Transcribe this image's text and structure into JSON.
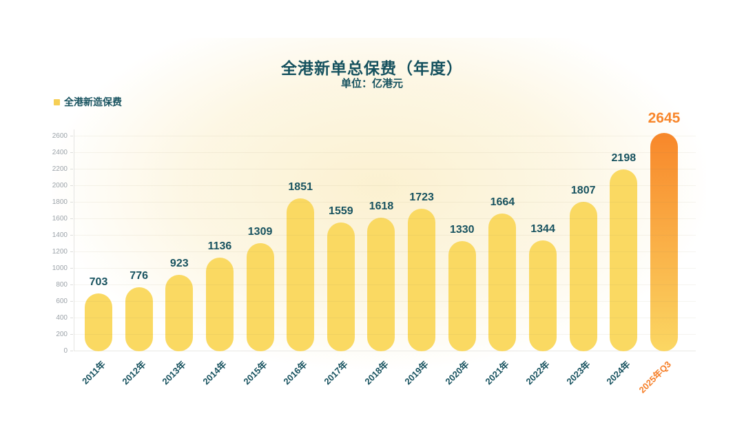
{
  "header": {
    "title": "全港新单总保费（年度）",
    "subtitle": "单位：亿港元"
  },
  "legend": {
    "label": "全港新造保费",
    "swatch_color": "#F6CF55"
  },
  "chart_data": {
    "type": "bar",
    "title": "全港新单总保费（年度）",
    "unit_label": "单位：亿港元",
    "legend_entries": [
      "全港新造保费"
    ],
    "legend_position": "top-left",
    "categories": [
      "2011年",
      "2012年",
      "2013年",
      "2014年",
      "2015年",
      "2016年",
      "2017年",
      "2018年",
      "2019年",
      "2020年",
      "2021年",
      "2022年",
      "2023年",
      "2024年",
      "2025年Q3"
    ],
    "values": [
      703,
      776,
      923,
      1136,
      1309,
      1851,
      1559,
      1618,
      1723,
      1330,
      1664,
      1344,
      1807,
      2198,
      2645
    ],
    "highlight_index": 14,
    "xlabel": "",
    "ylabel": "",
    "ylim": [
      0,
      2600
    ],
    "y_ticks": [
      0,
      200,
      400,
      600,
      800,
      1000,
      1200,
      1400,
      1600,
      1800,
      2000,
      2200,
      2400,
      2600
    ],
    "grid": true,
    "colors": {
      "bar": "#FAD962",
      "highlight_bar_top": "#F8872A",
      "highlight_bar_bottom": "#FBD763",
      "value_label": "#17525F",
      "highlight_value_label": "#F8862B",
      "category_label": "#17525F",
      "highlight_category_label": "#F67F28",
      "title": "#15515E",
      "axis_tick_label": "#9BA2A8"
    }
  }
}
